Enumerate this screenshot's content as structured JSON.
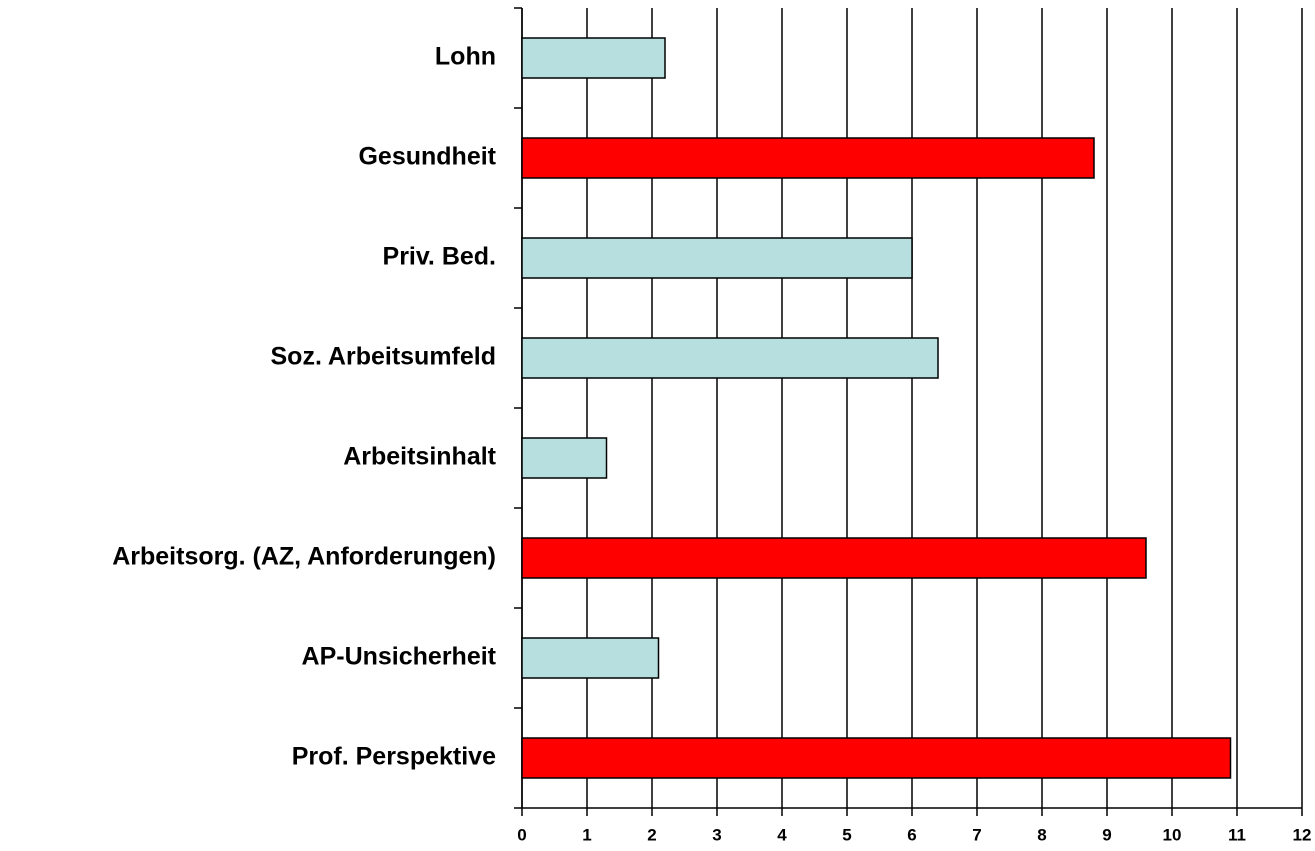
{
  "chart_data": {
    "type": "barh",
    "categories": [
      "Lohn",
      "Gesundheit",
      "Priv. Bed.",
      "Soz. Arbeitsumfeld",
      "Arbeitsinhalt",
      "Arbeitsorg. (AZ, Anforderungen)",
      "AP-Unsicherheit",
      "Prof. Perspektive"
    ],
    "values": [
      2.2,
      8.8,
      6.0,
      6.4,
      1.3,
      9.6,
      2.1,
      10.9
    ],
    "colors": [
      "#b7dfe0",
      "#ff0000",
      "#b7dfe0",
      "#b7dfe0",
      "#b7dfe0",
      "#ff0000",
      "#b7dfe0",
      "#ff0000"
    ],
    "xlim": [
      0,
      12
    ],
    "xticks": [
      0,
      1,
      2,
      3,
      4,
      5,
      6,
      7,
      8,
      9,
      10,
      11,
      12
    ],
    "grid": true
  }
}
